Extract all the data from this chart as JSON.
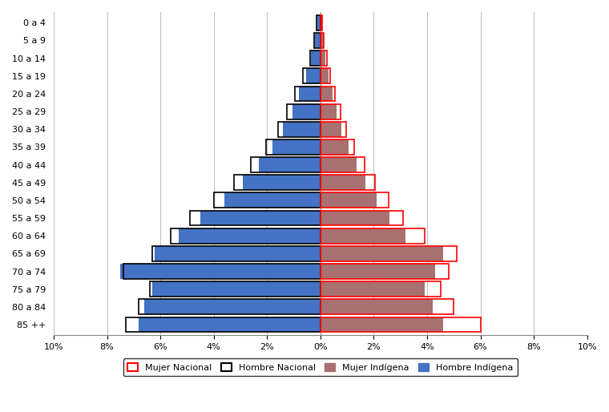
{
  "age_groups": [
    "0 a 4",
    "5 a 9",
    "10 a 14",
    "15 a 19",
    "20 a 24",
    "25 a 29",
    "30 a 34",
    "35 a 39",
    "40 a 44",
    "45 a 49",
    "50 a 54",
    "55 a 59",
    "60 a 64",
    "65 a 69",
    "70 a 74",
    "75 a 79",
    "80 a 84",
    "85 ++"
  ],
  "hombre_indigena": [
    0.12,
    0.22,
    0.35,
    0.55,
    0.8,
    1.05,
    1.4,
    1.8,
    2.3,
    2.9,
    3.6,
    4.5,
    5.3,
    6.2,
    7.5,
    6.3,
    6.6,
    6.8
  ],
  "mujer_indigena": [
    0.06,
    0.12,
    0.2,
    0.32,
    0.45,
    0.6,
    0.8,
    1.05,
    1.35,
    1.7,
    2.1,
    2.6,
    3.2,
    4.6,
    4.3,
    3.9,
    4.2,
    4.6
  ],
  "hombre_nacional": [
    0.15,
    0.25,
    0.4,
    0.65,
    0.95,
    1.25,
    1.6,
    2.05,
    2.6,
    3.25,
    4.0,
    4.9,
    5.6,
    6.3,
    7.4,
    6.4,
    6.8,
    7.3
  ],
  "mujer_nacional": [
    0.07,
    0.14,
    0.24,
    0.38,
    0.55,
    0.75,
    0.98,
    1.28,
    1.65,
    2.05,
    2.55,
    3.1,
    3.9,
    5.1,
    4.8,
    4.5,
    5.0,
    6.0
  ],
  "hombre_indigena_color": "#4472C4",
  "mujer_indigena_color": "#A87070",
  "hombre_nacional_edgecolor": "#000000",
  "mujer_nacional_edgecolor": "#FF0000",
  "xlim": [
    -10,
    10
  ],
  "xticks": [
    -10,
    -8,
    -6,
    -4,
    -2,
    0,
    2,
    4,
    6,
    8,
    10
  ],
  "xticklabels": [
    "10%",
    "8%",
    "6%",
    "4%",
    "2%",
    "0%",
    "2%",
    "4%",
    "6%",
    "8%",
    "10%"
  ],
  "background_color": "#FFFFFF",
  "grid_color": "#BBBBBB",
  "bar_height": 0.85,
  "legend_labels": [
    "Mujer Nacional",
    "Hombre Nacional",
    "Mujer Indígena",
    "Hombre Indígena"
  ]
}
